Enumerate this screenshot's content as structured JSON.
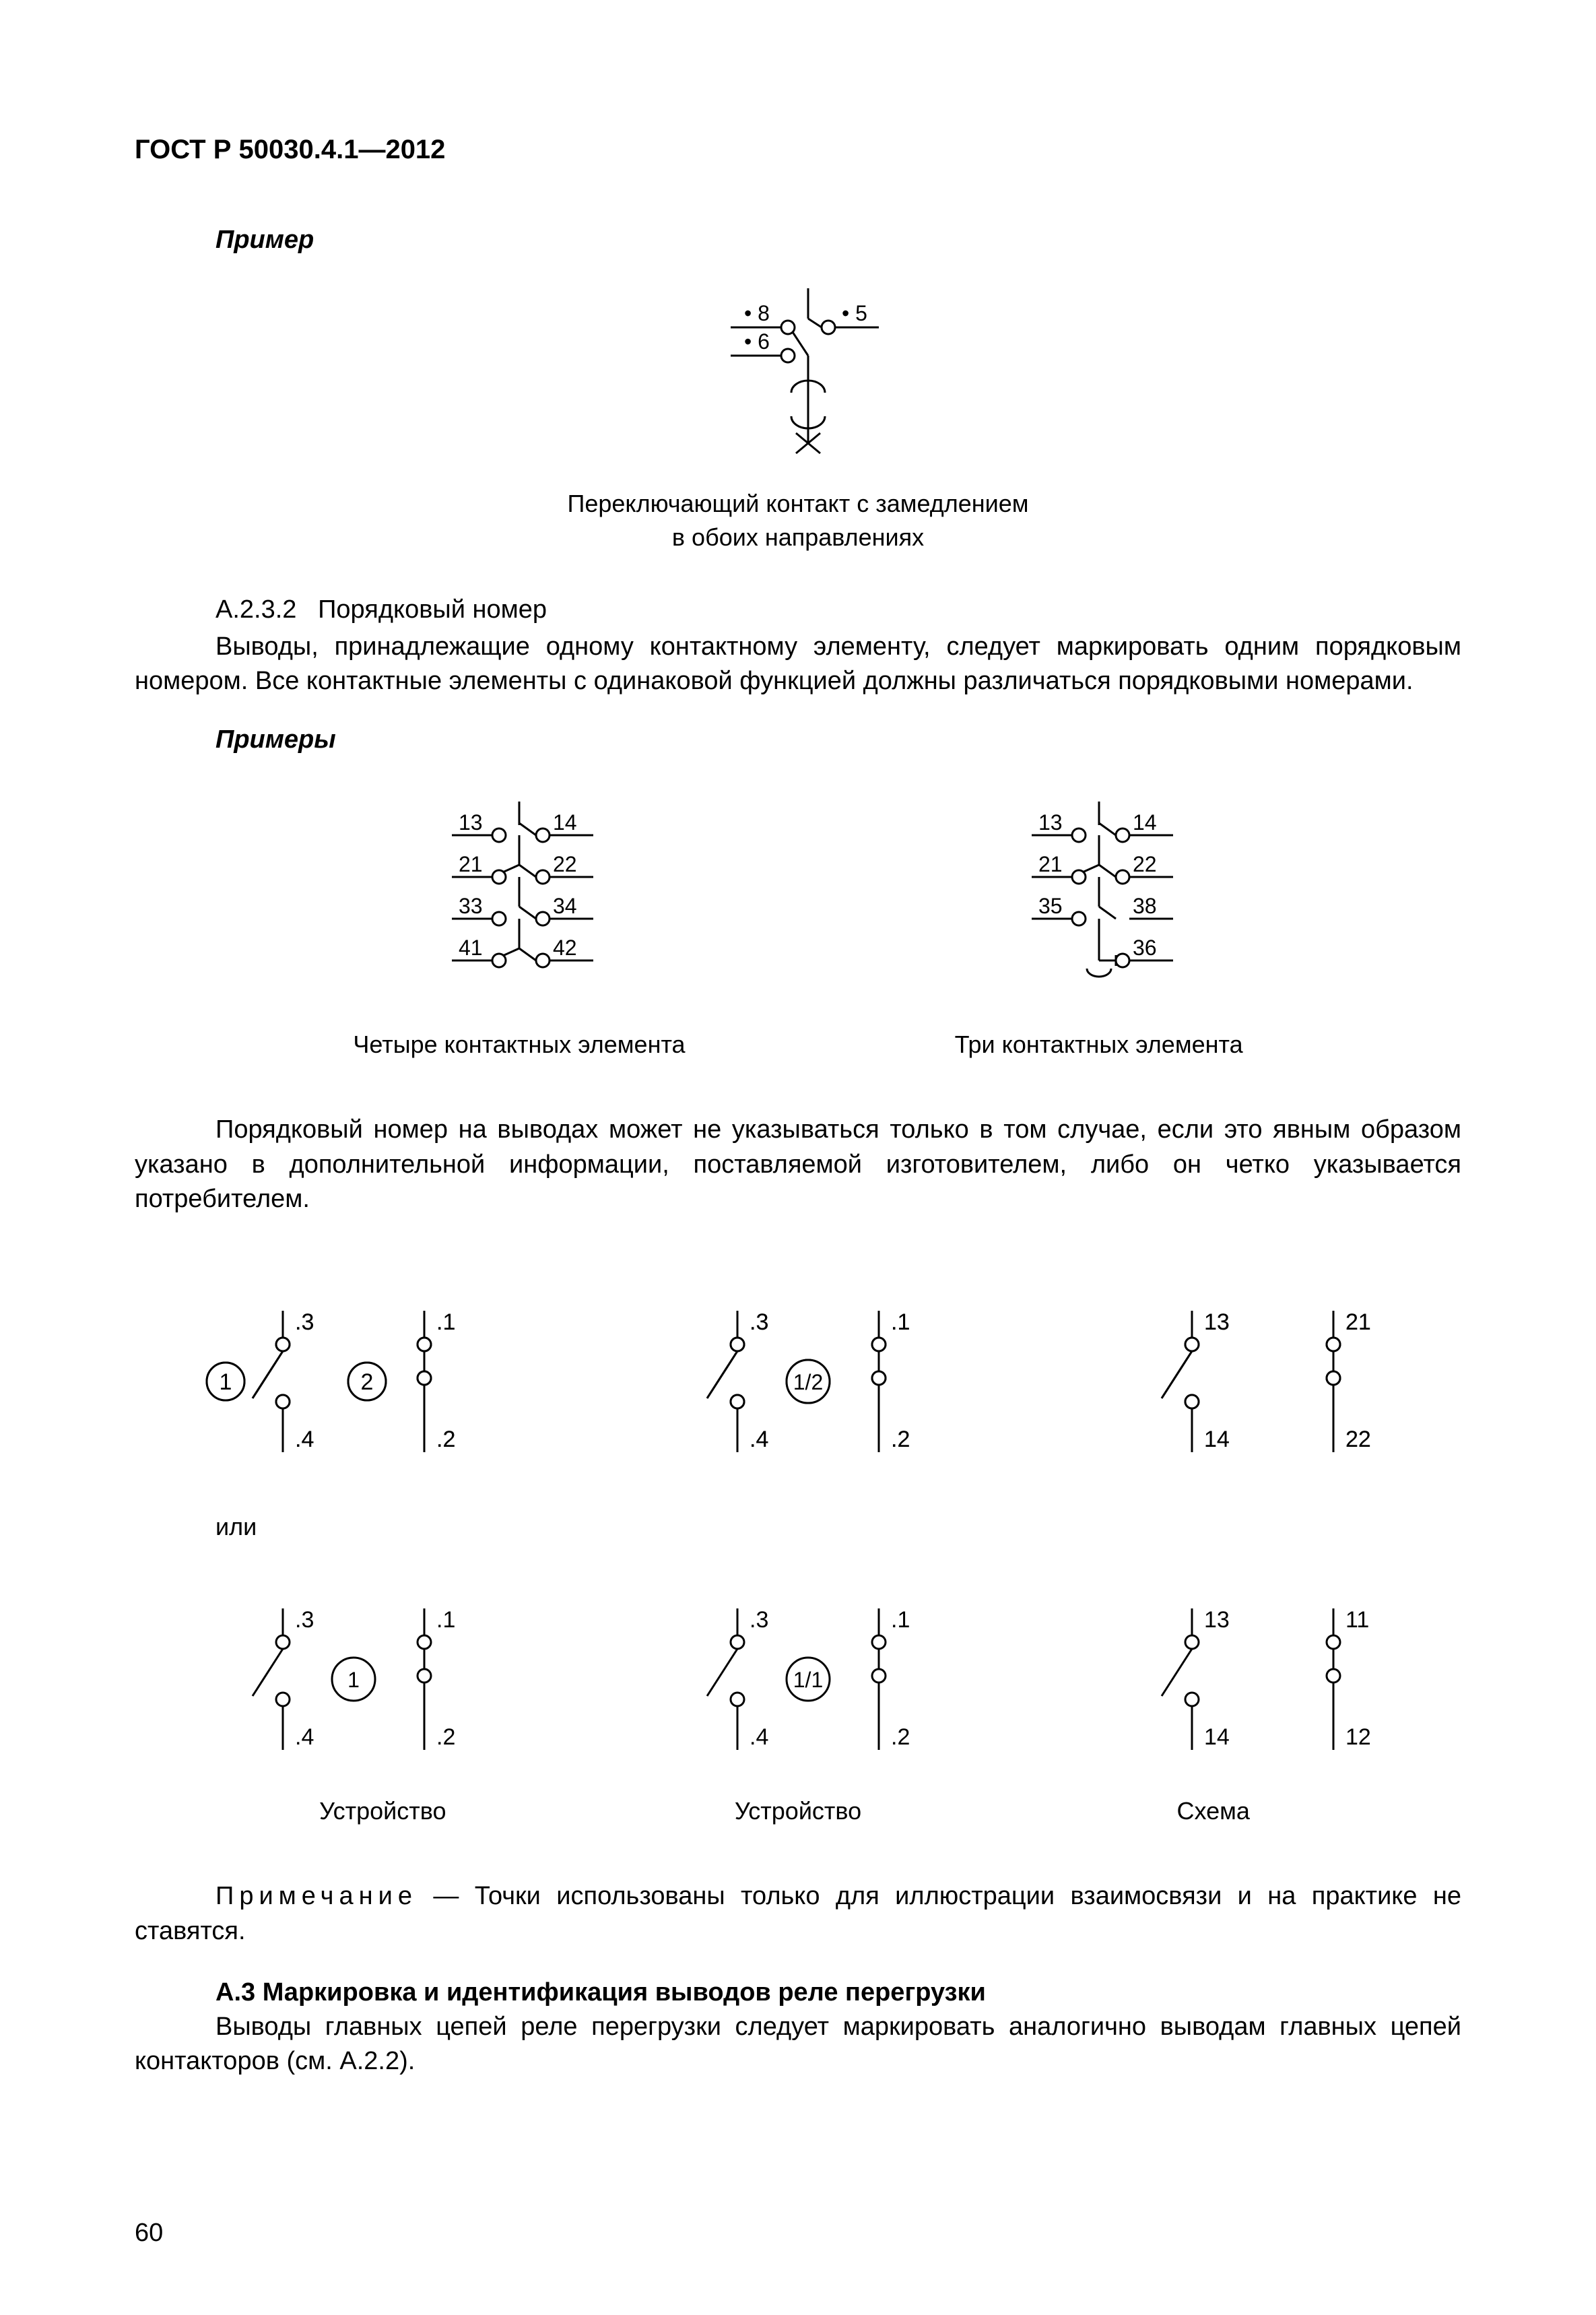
{
  "header": "ГОСТ Р 50030.4.1—2012",
  "example_label": "Пример",
  "diagram1": {
    "terminals": [
      "• 8",
      "• 5",
      "• 6"
    ],
    "caption_line1": "Переключающий контакт с замедлением",
    "caption_line2": "в обоих направлениях"
  },
  "section_a232": {
    "num": "А.2.3.2",
    "title": "Порядковый номер",
    "text": "Выводы, принадлежащие одному контактному элементу,  следует маркировать одним порядковым номером. Все контактные элементы с одинаковой функцией должны различаться порядковыми номерами."
  },
  "examples_label": "Примеры",
  "diagram2": {
    "left": {
      "rows": [
        {
          "l": "13",
          "r": "14",
          "type": "no"
        },
        {
          "l": "21",
          "r": "22",
          "type": "nc"
        },
        {
          "l": "33",
          "r": "34",
          "type": "no"
        },
        {
          "l": "41",
          "r": "42",
          "type": "nc"
        }
      ],
      "caption": "Четыре контактных элемента"
    },
    "right": {
      "rows": [
        {
          "l": "13",
          "r": "14",
          "type": "no"
        },
        {
          "l": "21",
          "r": "22",
          "type": "nc"
        },
        {
          "l": "35",
          "r": "38",
          "type": "co_top"
        },
        {
          "l": "",
          "r": "36",
          "type": "co_bot"
        }
      ],
      "caption": "Три контактных элемента"
    }
  },
  "para_after_examples": "Порядковый номер на выводах может не указываться только в том случае, если это явным образом указано в дополнительной информации, поставляемой изготовителем, либо он четко указывается потребителем.",
  "grid": {
    "top": [
      {
        "circle_labels": [
          "1",
          "2"
        ],
        "contacts": [
          {
            "t": ".3",
            "b": ".4",
            "type": "nc"
          },
          {
            "t": ".1",
            "b": ".2",
            "type": "no"
          }
        ]
      },
      {
        "circle_labels": [
          "1/2"
        ],
        "contacts": [
          {
            "t": ".3",
            "b": ".4",
            "type": "nc"
          },
          {
            "t": ".1",
            "b": ".2",
            "type": "no"
          }
        ]
      },
      {
        "circle_labels": [],
        "contacts": [
          {
            "t": "13",
            "b": "14",
            "type": "nc"
          },
          {
            "t": "21",
            "b": "22",
            "type": "no"
          }
        ]
      }
    ],
    "bot": [
      {
        "circle_labels": [
          "1"
        ],
        "contacts": [
          {
            "t": ".3",
            "b": ".4",
            "type": "nc"
          },
          {
            "t": ".1",
            "b": ".2",
            "type": "no"
          }
        ]
      },
      {
        "circle_labels": [
          "1/1"
        ],
        "contacts": [
          {
            "t": ".3",
            "b": ".4",
            "type": "nc"
          },
          {
            "t": ".1",
            "b": ".2",
            "type": "no"
          }
        ]
      },
      {
        "circle_labels": [],
        "contacts": [
          {
            "t": "13",
            "b": "14",
            "type": "nc"
          },
          {
            "t": "11",
            "b": "12",
            "type": "no"
          }
        ]
      }
    ],
    "or_label": "или",
    "captions": [
      "Устройство",
      "Устройство",
      "Схема"
    ]
  },
  "note_prefix": "Примечание",
  "note_text": " — Точки использованы только для иллюстрации взаимосвязи и на практике не ставятся.",
  "section_a3": {
    "heading": "А.3 Маркировка и идентификация выводов реле перегрузки",
    "text": "Выводы главных цепей реле перегрузки следует маркировать аналогично выводам главных цепей контакторов (см. А.2.2)."
  },
  "page_number": "60",
  "style": {
    "stroke": "#000000",
    "stroke_width": 3,
    "font_size_small": 32,
    "font_size_label": 34
  }
}
